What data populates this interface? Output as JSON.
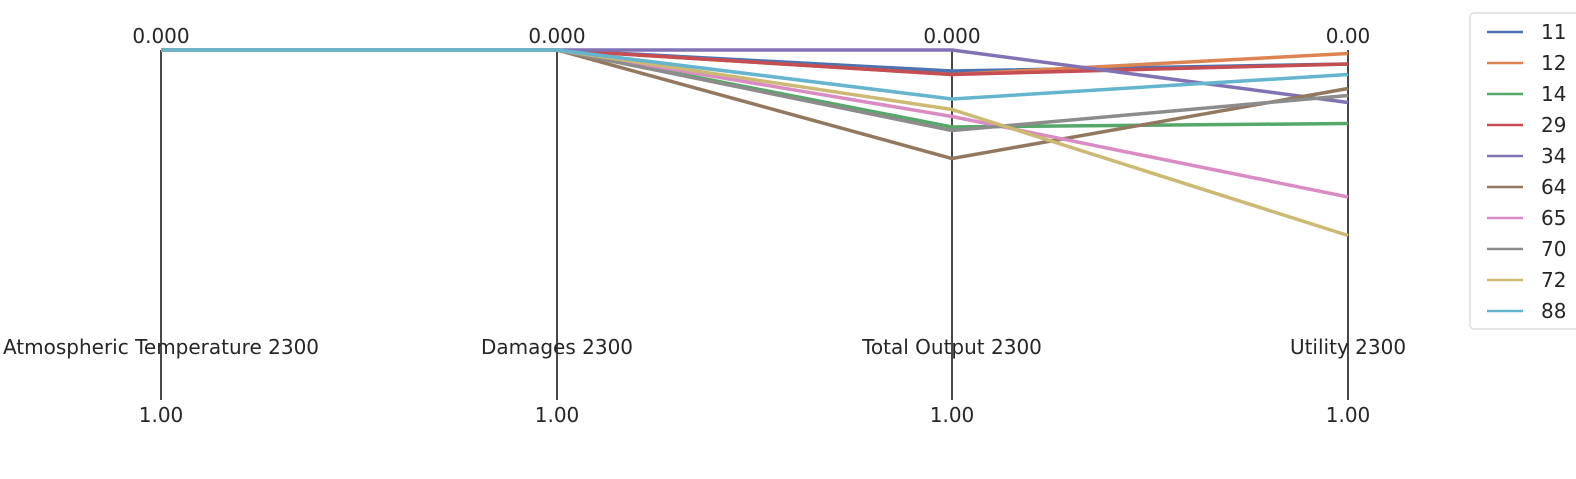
{
  "chart_data": {
    "type": "parallel-coordinates",
    "axes": [
      {
        "label": "Atmospheric Temperature 2300",
        "top_tick": "0.000",
        "bottom_tick": "1.00"
      },
      {
        "label": "Damages 2300",
        "top_tick": "0.000",
        "bottom_tick": "1.00"
      },
      {
        "label": "Total Output 2300",
        "top_tick": "0.000",
        "bottom_tick": "1.00"
      },
      {
        "label": "Utility 2300",
        "top_tick": "0.00",
        "bottom_tick": "1.00"
      }
    ],
    "ylim": [
      0,
      1
    ],
    "y_inverted": true,
    "legend_position": "right",
    "series": [
      {
        "name": "11",
        "color": "#4c72b0",
        "values": [
          0.0,
          0.0,
          0.06,
          0.04
        ]
      },
      {
        "name": "12",
        "color": "#dd8452",
        "values": [
          0.0,
          0.0,
          0.07,
          0.01
        ]
      },
      {
        "name": "14",
        "color": "#55a868",
        "values": [
          0.0,
          0.0,
          0.22,
          0.21
        ]
      },
      {
        "name": "29",
        "color": "#c44e52",
        "values": [
          0.0,
          0.0,
          0.07,
          0.04
        ]
      },
      {
        "name": "34",
        "color": "#8172b3",
        "values": [
          0.0,
          0.0,
          0.0,
          0.15
        ]
      },
      {
        "name": "64",
        "color": "#937860",
        "values": [
          0.0,
          0.0,
          0.31,
          0.11
        ]
      },
      {
        "name": "65",
        "color": "#da8bc3",
        "values": [
          0.0,
          0.0,
          0.19,
          0.42
        ]
      },
      {
        "name": "70",
        "color": "#8c8c8c",
        "values": [
          0.0,
          0.0,
          0.23,
          0.13
        ]
      },
      {
        "name": "72",
        "color": "#ccb974",
        "values": [
          0.0,
          0.0,
          0.17,
          0.53
        ]
      },
      {
        "name": "88",
        "color": "#64b5cd",
        "values": [
          0.0,
          0.0,
          0.14,
          0.07
        ]
      }
    ]
  }
}
